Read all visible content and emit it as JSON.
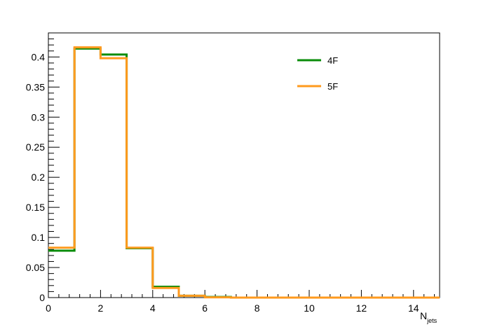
{
  "chart_data": {
    "type": "line",
    "step": true,
    "title": "",
    "xlabel": {
      "main": "N",
      "sub": "jets"
    },
    "ylabel": "",
    "xlim": [
      0,
      15
    ],
    "ylim": [
      0,
      0.44
    ],
    "grid": false,
    "legend_position": "top-right",
    "x_bin_edges": [
      0,
      1,
      2,
      3,
      4,
      5,
      6,
      7,
      8,
      9,
      10,
      11,
      12,
      13,
      14,
      15
    ],
    "x_major_ticks": [
      0,
      2,
      4,
      6,
      8,
      10,
      12,
      14
    ],
    "x_tick_labels": [
      "0",
      "2",
      "4",
      "6",
      "8",
      "10",
      "12",
      "14"
    ],
    "y_major_ticks": [
      0,
      0.05,
      0.1,
      0.15,
      0.2,
      0.25,
      0.3,
      0.35,
      0.4
    ],
    "y_tick_labels": [
      "0",
      "0.05",
      "0.1",
      "0.15",
      "0.2",
      "0.25",
      "0.3",
      "0.35",
      "0.4"
    ],
    "series": [
      {
        "name": "4F",
        "color": "#0a8c0a",
        "values": [
          0.078,
          0.414,
          0.404,
          0.082,
          0.018,
          0.003,
          0.001,
          0.0,
          0.0,
          0.0,
          0.0,
          0.0,
          0.0,
          0.0,
          0.0
        ]
      },
      {
        "name": "5F",
        "color": "#ff9a1e",
        "values": [
          0.083,
          0.416,
          0.398,
          0.083,
          0.016,
          0.003,
          0.0005,
          0.0,
          0.0,
          0.0,
          0.0,
          0.0,
          0.0,
          0.0,
          0.0
        ]
      }
    ]
  }
}
